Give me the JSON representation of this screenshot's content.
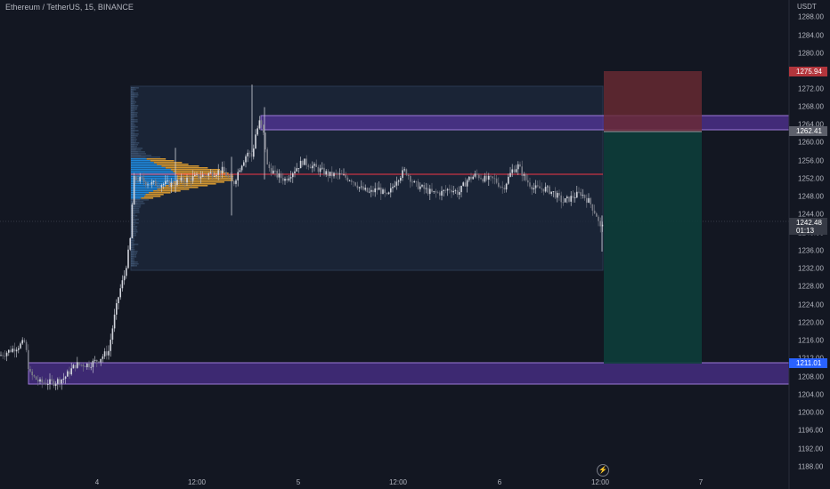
{
  "header": {
    "symbol_title": "Ethereum / TetherUS, 15, BINANCE",
    "price_unit": "USDT"
  },
  "price_axis": {
    "labels": [
      "1288.00",
      "1284.00",
      "1280.00",
      "1272.00",
      "1268.00",
      "1264.00",
      "1260.00",
      "1256.00",
      "1252.00",
      "1248.00",
      "1244.00",
      "1240.00",
      "1236.00",
      "1232.00",
      "1228.00",
      "1224.00",
      "1220.00",
      "1216.00",
      "1212.00",
      "1208.00",
      "1204.00",
      "1200.00",
      "1196.00",
      "1192.00",
      "1188.00"
    ]
  },
  "badges": {
    "stop_loss": "1275.94",
    "entry": "1262.41",
    "current_price": "1242.48",
    "countdown": "01:13",
    "take_profit": "1211.01"
  },
  "time_axis": {
    "labels": [
      "4",
      "12:00",
      "5",
      "12:00",
      "6",
      "12:00",
      "7"
    ]
  },
  "icons": {
    "replay": "lightning-icon"
  },
  "colors": {
    "background": "#131722",
    "up_candle": "#d1d4dc",
    "volume_profile_value_area": "#2196f3",
    "volume_profile_outside": "#f0a830",
    "poc_line": "#f23645",
    "zone": "#673ab7",
    "stop_zone": "#f23645",
    "target_zone": "#089981"
  }
}
